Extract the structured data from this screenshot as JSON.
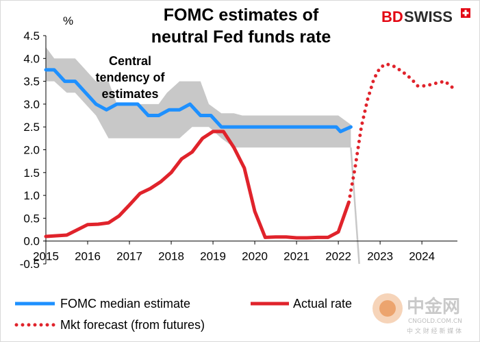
{
  "header": {
    "title_line1": "FOMC estimates of",
    "title_line2": "neutral Fed funds rate"
  },
  "brand": {
    "name_bd": "BD",
    "name_swiss": "SWISS",
    "color_red": "#e30613",
    "color_dark": "#2b2b2b"
  },
  "watermark": {
    "chinese": "中金网",
    "domain": "CNGOLD.COM.CN",
    "tagline": "中 文 财 经 新 媒 体"
  },
  "chart_data": {
    "type": "line",
    "title": "FOMC estimates of neutral Fed funds rate",
    "unit_label": "%",
    "ylim": [
      -0.5,
      4.5
    ],
    "xlim": [
      2015,
      2024.85
    ],
    "yticks": [
      "-0.5",
      "0.0",
      "0.5",
      "1.0",
      "1.5",
      "2.0",
      "2.5",
      "3.0",
      "3.5",
      "4.0",
      "4.5"
    ],
    "xticks": [
      "2015",
      "2016",
      "2017",
      "2018",
      "2019",
      "2020",
      "2021",
      "2022",
      "2023",
      "2024"
    ],
    "grid": false,
    "legend_position": "bottom",
    "colors": {
      "fomc_median": "#1e90ff",
      "actual_rate": "#e0232b",
      "mkt_forecast": "#e0232b",
      "central_tendency": "#c8c8c8"
    },
    "annotation": {
      "lines": [
        "Central",
        "tendency of",
        "estimates"
      ]
    },
    "legend": {
      "fomc_median": "FOMC median estimate",
      "actual_rate": "Actual rate",
      "mkt_forecast": "Mkt forecast (from futures)"
    },
    "central_tendency": {
      "upper": [
        [
          2015.0,
          4.25
        ],
        [
          2015.2,
          4.0
        ],
        [
          2015.5,
          4.0
        ],
        [
          2015.7,
          4.0
        ],
        [
          2016.2,
          3.5
        ],
        [
          2016.5,
          3.5
        ],
        [
          2016.7,
          3.0
        ],
        [
          2017.2,
          3.0
        ],
        [
          2017.4,
          3.0
        ],
        [
          2017.7,
          3.0
        ],
        [
          2017.9,
          3.25
        ],
        [
          2018.2,
          3.5
        ],
        [
          2018.5,
          3.5
        ],
        [
          2018.7,
          3.5
        ],
        [
          2018.9,
          3.0
        ],
        [
          2019.2,
          2.8
        ],
        [
          2019.5,
          2.8
        ],
        [
          2019.7,
          2.75
        ],
        [
          2020.0,
          2.75
        ],
        [
          2020.5,
          2.75
        ],
        [
          2021.0,
          2.75
        ],
        [
          2021.5,
          2.75
        ],
        [
          2022.0,
          2.75
        ],
        [
          2022.3,
          2.55
        ]
      ],
      "lower": [
        [
          2015.0,
          3.5
        ],
        [
          2015.2,
          3.5
        ],
        [
          2015.5,
          3.25
        ],
        [
          2015.7,
          3.25
        ],
        [
          2016.2,
          2.75
        ],
        [
          2016.5,
          2.25
        ],
        [
          2016.7,
          2.25
        ],
        [
          2017.2,
          2.25
        ],
        [
          2017.4,
          2.25
        ],
        [
          2017.7,
          2.25
        ],
        [
          2017.9,
          2.25
        ],
        [
          2018.2,
          2.25
        ],
        [
          2018.5,
          2.5
        ],
        [
          2018.7,
          2.5
        ],
        [
          2018.9,
          2.5
        ],
        [
          2019.2,
          2.25
        ],
        [
          2019.5,
          2.05
        ],
        [
          2019.7,
          2.05
        ],
        [
          2020.0,
          2.05
        ],
        [
          2020.5,
          2.05
        ],
        [
          2021.0,
          2.05
        ],
        [
          2021.5,
          2.05
        ],
        [
          2022.0,
          2.05
        ],
        [
          2022.3,
          2.05
        ]
      ],
      "drop": [
        [
          2022.3,
          2.05
        ],
        [
          2022.5,
          -0.5
        ]
      ]
    },
    "series": [
      {
        "name": "FOMC median estimate",
        "style": "solid",
        "points": [
          [
            2015.0,
            3.75
          ],
          [
            2015.2,
            3.75
          ],
          [
            2015.45,
            3.5
          ],
          [
            2015.7,
            3.5
          ],
          [
            2015.95,
            3.25
          ],
          [
            2016.2,
            3.0
          ],
          [
            2016.45,
            2.875
          ],
          [
            2016.7,
            3.0
          ],
          [
            2017.2,
            3.0
          ],
          [
            2017.45,
            2.75
          ],
          [
            2017.7,
            2.75
          ],
          [
            2017.95,
            2.875
          ],
          [
            2018.2,
            2.875
          ],
          [
            2018.45,
            3.0
          ],
          [
            2018.7,
            2.75
          ],
          [
            2018.95,
            2.75
          ],
          [
            2019.2,
            2.5
          ],
          [
            2019.5,
            2.5
          ],
          [
            2020.0,
            2.5
          ],
          [
            2020.5,
            2.5
          ],
          [
            2021.0,
            2.5
          ],
          [
            2021.5,
            2.5
          ],
          [
            2021.95,
            2.5
          ],
          [
            2022.05,
            2.4
          ],
          [
            2022.3,
            2.5
          ]
        ]
      },
      {
        "name": "Actual rate",
        "style": "solid",
        "points": [
          [
            2015.0,
            0.1
          ],
          [
            2015.5,
            0.13
          ],
          [
            2016.0,
            0.36
          ],
          [
            2016.25,
            0.37
          ],
          [
            2016.5,
            0.4
          ],
          [
            2016.75,
            0.55
          ],
          [
            2017.0,
            0.79
          ],
          [
            2017.25,
            1.04
          ],
          [
            2017.5,
            1.15
          ],
          [
            2017.75,
            1.3
          ],
          [
            2018.0,
            1.5
          ],
          [
            2018.25,
            1.8
          ],
          [
            2018.5,
            1.95
          ],
          [
            2018.75,
            2.25
          ],
          [
            2019.0,
            2.4
          ],
          [
            2019.25,
            2.4
          ],
          [
            2019.5,
            2.05
          ],
          [
            2019.75,
            1.6
          ],
          [
            2020.0,
            0.65
          ],
          [
            2020.25,
            0.08
          ],
          [
            2020.5,
            0.09
          ],
          [
            2020.75,
            0.09
          ],
          [
            2021.0,
            0.07
          ],
          [
            2021.25,
            0.07
          ],
          [
            2021.5,
            0.08
          ],
          [
            2021.75,
            0.08
          ],
          [
            2022.0,
            0.2
          ],
          [
            2022.25,
            0.85
          ]
        ]
      },
      {
        "name": "Mkt forecast (from futures)",
        "style": "dotted",
        "points": [
          [
            2022.25,
            0.85
          ],
          [
            2022.4,
            1.6
          ],
          [
            2022.55,
            2.5
          ],
          [
            2022.7,
            3.1
          ],
          [
            2022.85,
            3.55
          ],
          [
            2023.0,
            3.8
          ],
          [
            2023.15,
            3.88
          ],
          [
            2023.35,
            3.82
          ],
          [
            2023.55,
            3.7
          ],
          [
            2023.75,
            3.55
          ],
          [
            2023.9,
            3.4
          ],
          [
            2024.1,
            3.4
          ],
          [
            2024.3,
            3.45
          ],
          [
            2024.55,
            3.5
          ],
          [
            2024.75,
            3.35
          ]
        ]
      }
    ]
  }
}
